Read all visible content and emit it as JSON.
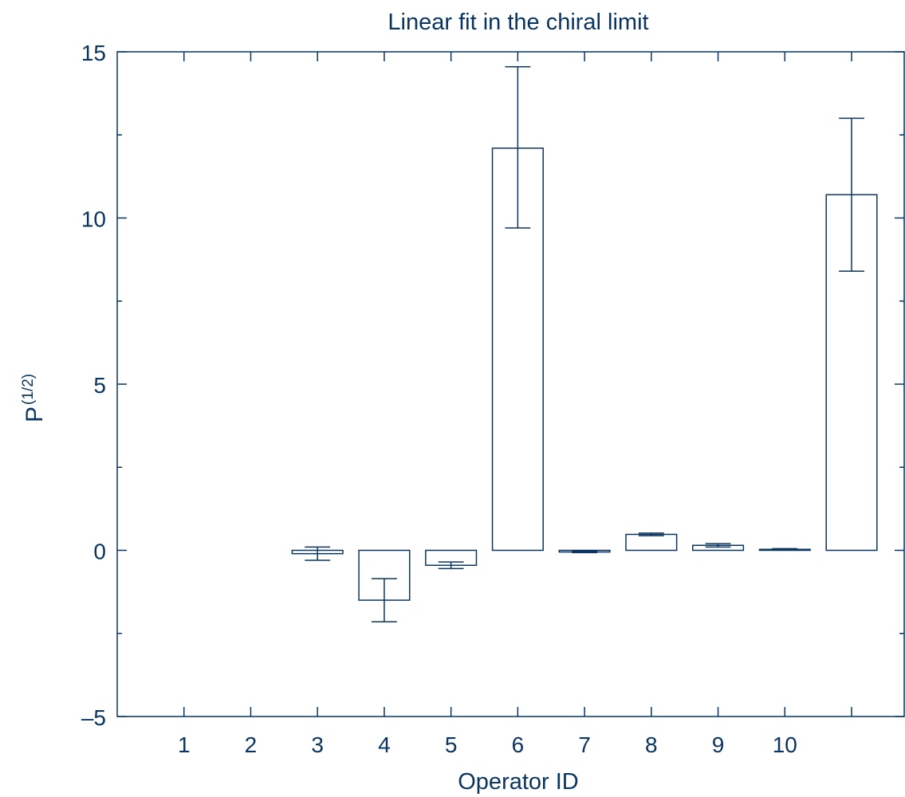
{
  "chart_data": {
    "type": "bar",
    "title": "Linear fit in the chiral limit",
    "xlabel": "Operator ID",
    "ylabel": "P",
    "ylabel_sup": "(1/2)",
    "x_range": [
      0,
      11.8
    ],
    "ylim": [
      -5,
      15
    ],
    "yticks": [
      -5,
      0,
      5,
      10,
      15
    ],
    "ytick_labels": [
      "–5",
      "0",
      "5",
      "10",
      "15"
    ],
    "xticks": [
      1,
      2,
      3,
      4,
      5,
      6,
      7,
      8,
      9,
      10,
      11
    ],
    "xtick_labels": [
      "1",
      "2",
      "3",
      "4",
      "5",
      "6",
      "7",
      "8",
      "9",
      "10",
      ""
    ],
    "bar_width": 0.76,
    "grid": false,
    "legend": "none",
    "bars": [
      {
        "x": 3,
        "value": -0.1,
        "err_low": -0.3,
        "err_high": 0.1
      },
      {
        "x": 4,
        "value": -1.5,
        "err_low": -2.15,
        "err_high": -0.85
      },
      {
        "x": 5,
        "value": -0.45,
        "err_low": -0.55,
        "err_high": -0.35
      },
      {
        "x": 6,
        "value": 12.1,
        "err_low": 9.7,
        "err_high": 14.55
      },
      {
        "x": 7,
        "value": -0.05,
        "err_low": -0.07,
        "err_high": -0.02
      },
      {
        "x": 8,
        "value": 0.48,
        "err_low": 0.44,
        "err_high": 0.52
      },
      {
        "x": 9,
        "value": 0.15,
        "err_low": 0.1,
        "err_high": 0.2
      },
      {
        "x": 10,
        "value": 0.03,
        "err_low": 0.01,
        "err_high": 0.05
      },
      {
        "x": 11,
        "value": 10.7,
        "err_low": 8.4,
        "err_high": 13.0
      }
    ],
    "color": "#0b3561"
  }
}
